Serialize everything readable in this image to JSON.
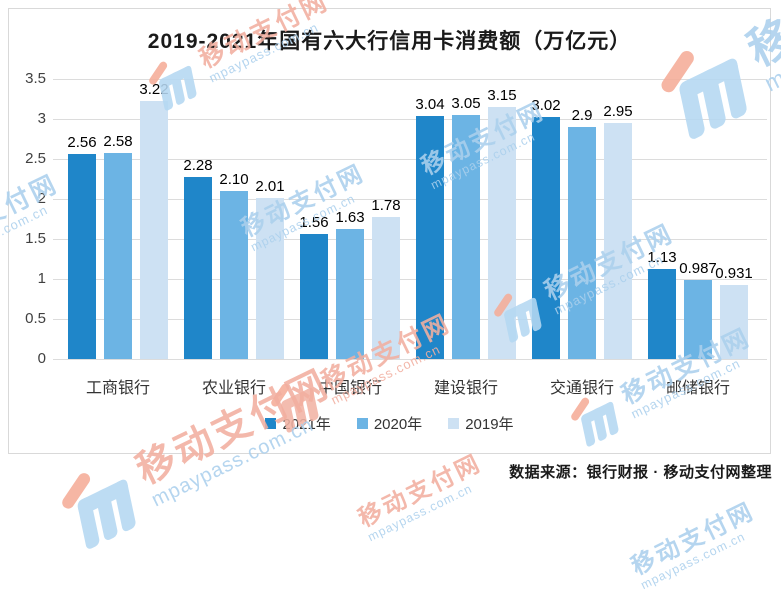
{
  "title": "2019-2021年国有六大行信用卡消费额（万亿元）",
  "source_note": "数据来源：银行财报 · 移动支付网整理",
  "watermark": {
    "brand": "移动支付网",
    "url": "mpaypass.com.cn"
  },
  "colors": {
    "bar_2021": "#1F86C9",
    "bar_2020": "#6CB4E4",
    "bar_2019": "#CDE1F3",
    "gridline": "#DCDCDC",
    "border": "#D9D9D9",
    "watermark_blue": "#ABD0ED",
    "watermark_pink": "#F2AFA0"
  },
  "chart_data": {
    "type": "bar",
    "categories": [
      "工商银行",
      "农业银行",
      "中国银行",
      "建设银行",
      "交通银行",
      "邮储银行"
    ],
    "series": [
      {
        "name": "2021年",
        "color": "#1F86C9",
        "values": [
          2.56,
          2.28,
          1.56,
          3.04,
          3.02,
          1.13
        ],
        "labels": [
          "2.56",
          "2.28",
          "1.56",
          "3.04",
          "3.02",
          "1.13"
        ]
      },
      {
        "name": "2020年",
        "color": "#6CB4E4",
        "values": [
          2.58,
          2.1,
          1.63,
          3.05,
          2.9,
          0.987
        ],
        "labels": [
          "2.58",
          "2.10",
          "1.63",
          "3.05",
          "2.9",
          "0.987"
        ]
      },
      {
        "name": "2019年",
        "color": "#CDE1F3",
        "values": [
          3.22,
          2.01,
          1.78,
          3.15,
          2.95,
          0.931
        ],
        "labels": [
          "3.22",
          "2.01",
          "1.78",
          "3.15",
          "2.95",
          "0.931"
        ]
      }
    ],
    "xlabel": "",
    "ylabel": "",
    "ylim": [
      0,
      3.5
    ],
    "ytick_labels": [
      "3.5",
      "3",
      "2.5",
      "2",
      "1.5",
      "1",
      "0.5",
      "0"
    ],
    "grid": true,
    "legend_position": "bottom"
  }
}
